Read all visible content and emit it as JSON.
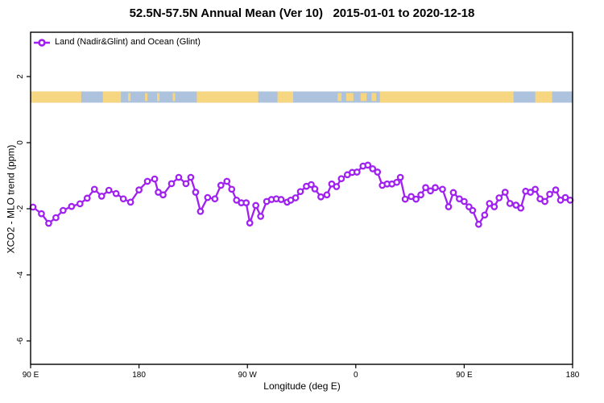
{
  "title": "52.5N-57.5N Annual Mean (Ver 10)   2015-01-01 to 2020-12-18",
  "chart_data": {
    "type": "line",
    "title": "52.5N-57.5N Annual Mean (Ver 10)   2015-01-01 to 2020-12-18",
    "xlabel": "Longitude (deg E)",
    "ylabel": "XCO2 - MLO trend (ppm)",
    "legend_position": "top-left",
    "grid": false,
    "xlim_axis_deg": [
      0,
      450
    ],
    "ylim": [
      -6.7,
      3.35
    ],
    "x_ticks": [
      {
        "pos_deg": 0,
        "label": "90 E"
      },
      {
        "pos_deg": 90,
        "label": "180"
      },
      {
        "pos_deg": 180,
        "label": "90 W"
      },
      {
        "pos_deg": 270,
        "label": "0"
      },
      {
        "pos_deg": 360,
        "label": "90 E"
      },
      {
        "pos_deg": 450,
        "label": "180"
      }
    ],
    "y_ticks": [
      {
        "value": 2,
        "label": "2"
      },
      {
        "value": 0,
        "label": "0"
      },
      {
        "value": -2,
        "label": "-2"
      },
      {
        "value": -4,
        "label": "-4"
      },
      {
        "value": -6,
        "label": "-6"
      }
    ],
    "series": [
      {
        "name": "Land (Nadir&Glint) and Ocean (Glint)",
        "color": "#A020F0",
        "marker": "open-circle",
        "x_axis_deg": [
          2,
          9,
          15,
          21,
          27,
          34,
          41,
          47,
          53,
          59,
          65,
          71,
          77,
          83,
          90,
          97,
          103,
          106,
          110,
          117,
          123,
          129,
          133,
          137,
          141,
          147,
          153,
          158,
          163,
          167,
          171,
          175,
          179,
          182,
          187,
          191,
          196,
          200,
          204,
          208,
          213,
          216,
          220,
          224,
          229,
          233,
          236,
          241,
          246,
          250,
          254,
          258,
          263,
          267,
          271,
          276,
          280,
          284,
          288,
          292,
          296,
          300,
          304,
          307,
          311,
          316,
          320,
          324,
          328,
          332,
          336,
          342,
          347,
          351,
          356,
          360,
          364,
          367,
          372,
          377,
          381,
          385,
          389,
          394,
          398,
          403,
          407,
          411,
          415,
          419,
          423,
          427,
          431,
          436,
          440,
          444,
          448
        ],
        "values": [
          -1.95,
          -2.15,
          -2.44,
          -2.27,
          -2.05,
          -1.93,
          -1.85,
          -1.68,
          -1.41,
          -1.62,
          -1.44,
          -1.54,
          -1.7,
          -1.8,
          -1.43,
          -1.17,
          -1.1,
          -1.5,
          -1.58,
          -1.24,
          -1.05,
          -1.24,
          -1.05,
          -1.5,
          -2.08,
          -1.66,
          -1.7,
          -1.29,
          -1.17,
          -1.41,
          -1.74,
          -1.82,
          -1.82,
          -2.43,
          -1.9,
          -2.23,
          -1.78,
          -1.72,
          -1.7,
          -1.72,
          -1.8,
          -1.74,
          -1.67,
          -1.48,
          -1.32,
          -1.27,
          -1.4,
          -1.64,
          -1.58,
          -1.25,
          -1.33,
          -1.09,
          -0.97,
          -0.9,
          -0.89,
          -0.71,
          -0.68,
          -0.79,
          -0.89,
          -1.29,
          -1.25,
          -1.25,
          -1.2,
          -1.05,
          -1.71,
          -1.63,
          -1.71,
          -1.58,
          -1.36,
          -1.46,
          -1.36,
          -1.41,
          -1.94,
          -1.51,
          -1.7,
          -1.78,
          -1.94,
          -2.05,
          -2.47,
          -2.19,
          -1.84,
          -1.94,
          -1.67,
          -1.5,
          -1.84,
          -1.89,
          -1.98,
          -1.47,
          -1.5,
          -1.41,
          -1.7,
          -1.78,
          -1.56,
          -1.43,
          -1.74,
          -1.66,
          -1.74
        ]
      }
    ],
    "map_strip": {
      "description": "land/ocean mask band",
      "value_top": 1.55,
      "value_bottom": 1.21,
      "ocean_color": "#ADC2DC",
      "land_color": "#F7D682",
      "land_segments_deg": [
        [
          0,
          42
        ],
        [
          60,
          75
        ],
        [
          138,
          189
        ],
        [
          205,
          218
        ],
        [
          290,
          401
        ],
        [
          419,
          433
        ]
      ],
      "island_segments_deg": [
        [
          81,
          83
        ],
        [
          95,
          97
        ],
        [
          105,
          107
        ],
        [
          118,
          120
        ],
        [
          255,
          258
        ],
        [
          262,
          268
        ],
        [
          274,
          279
        ],
        [
          283,
          287
        ]
      ]
    }
  },
  "legend": {
    "label": "Land (Nadir&Glint) and Ocean (Glint)"
  },
  "axis": {
    "xlabel": "Longitude (deg E)",
    "ylabel": "XCO2 - MLO trend (ppm)"
  },
  "colors": {
    "line": "#A020F0",
    "land": "#F7D682",
    "ocean": "#ADC2DC",
    "axis": "#000000"
  }
}
